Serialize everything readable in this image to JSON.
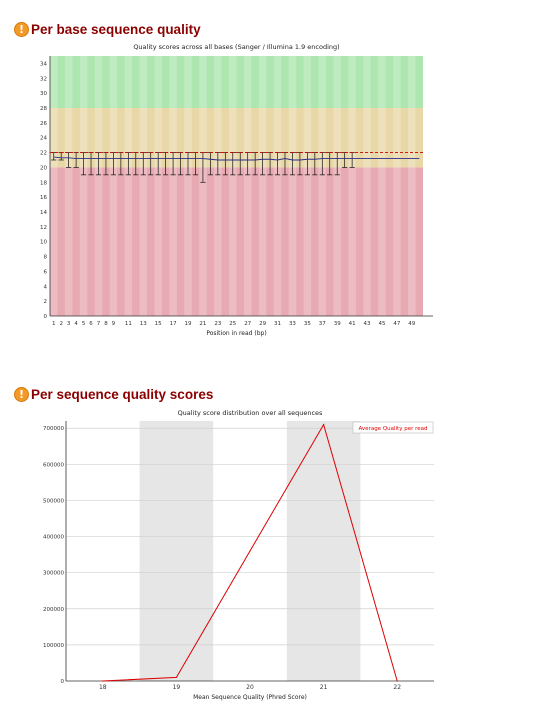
{
  "sections": [
    {
      "title": "Per base sequence quality",
      "status_icon": "warning-icon",
      "status_color": "#f39a26"
    },
    {
      "title": "Per sequence quality scores",
      "status_icon": "warning-icon",
      "status_color": "#f39a26"
    }
  ],
  "colors": {
    "title_red": "#8b0000",
    "band_good": "#aee6b0",
    "band_warn": "#e8d8a8",
    "band_bad": "#e8aab2",
    "mean_line": "#2d2d8a",
    "median_line": "#cc0000",
    "line_red": "#dd0000",
    "shade_grey": "#e6e6e6",
    "grid": "#d0d0d0"
  },
  "chart_data": [
    {
      "type": "box",
      "title": "Quality scores across all bases (Sanger / Illumina 1.9 encoding)",
      "xlabel": "Position in read (bp)",
      "ylabel": "",
      "ylim": [
        0,
        35
      ],
      "yticks": [
        0,
        2,
        4,
        6,
        8,
        10,
        12,
        14,
        16,
        18,
        20,
        22,
        24,
        26,
        28,
        30,
        32,
        34
      ],
      "positions": [
        1,
        2,
        3,
        4,
        5,
        6,
        7,
        8,
        9,
        10,
        11,
        12,
        13,
        14,
        15,
        16,
        17,
        18,
        19,
        20,
        21,
        22,
        23,
        24,
        25,
        26,
        27,
        28,
        29,
        30,
        31,
        32,
        33,
        34,
        35,
        36,
        37,
        38,
        39,
        40,
        41,
        42,
        43,
        44,
        45,
        46,
        47,
        48,
        49,
        50
      ],
      "xtick_labels": [
        "1",
        "2",
        "3",
        "4",
        "5",
        "6",
        "7",
        "8",
        "9",
        "11",
        "13",
        "15",
        "17",
        "19",
        "21",
        "23",
        "25",
        "27",
        "29",
        "31",
        "33",
        "35",
        "37",
        "39",
        "41",
        "43",
        "45",
        "47",
        "49"
      ],
      "bands": [
        {
          "name": "good",
          "from": 28,
          "to": 35
        },
        {
          "name": "warning",
          "from": 20,
          "to": 28
        },
        {
          "name": "poor",
          "from": 0,
          "to": 20
        }
      ],
      "median_line_value": 22,
      "mean_values": [
        21.4,
        21.3,
        21.3,
        21.2,
        21.2,
        21.2,
        21.2,
        21.2,
        21.2,
        21.2,
        21.2,
        21.2,
        21.2,
        21.2,
        21.2,
        21.2,
        21.2,
        21.2,
        21.2,
        21.2,
        21.2,
        21.1,
        21.0,
        21.0,
        21.0,
        21.0,
        21.0,
        21.0,
        21.1,
        21.1,
        21.0,
        21.2,
        21.0,
        21.0,
        21.1,
        21.1,
        21.2,
        21.2,
        21.2,
        21.2,
        21.2,
        21.2,
        21.2,
        21.2,
        21.2,
        21.2,
        21.2,
        21.2,
        21.2,
        21.2
      ],
      "whisker_low": [
        21,
        21,
        20,
        20,
        19,
        19,
        19,
        19,
        19,
        19,
        19,
        19,
        19,
        19,
        19,
        19,
        19,
        19,
        19,
        19,
        18,
        19,
        19,
        19,
        19,
        19,
        19,
        19,
        19,
        19,
        19,
        19,
        19,
        19,
        19,
        19,
        19,
        19,
        19,
        20,
        20,
        null,
        null,
        null,
        null,
        null,
        null,
        null,
        null,
        null
      ],
      "whisker_high": [
        22,
        22,
        22,
        22,
        22,
        22,
        22,
        22,
        22,
        22,
        22,
        22,
        22,
        22,
        22,
        22,
        22,
        22,
        22,
        22,
        22,
        22,
        22,
        22,
        22,
        22,
        22,
        22,
        22,
        22,
        22,
        22,
        22,
        22,
        22,
        22,
        22,
        22,
        22,
        22,
        22,
        null,
        null,
        null,
        null,
        null,
        null,
        null,
        null,
        null
      ]
    },
    {
      "type": "line",
      "title": "Quality score distribution over all sequences",
      "xlabel": "Mean Sequence Quality (Phred Score)",
      "ylabel": "",
      "legend": "Average Quality per read",
      "legend_position": "top-right",
      "x": [
        18,
        19,
        20,
        21,
        22
      ],
      "values": [
        0,
        10000,
        360000,
        710000,
        0
      ],
      "ylim": [
        0,
        720000
      ],
      "yticks": [
        0,
        100000,
        200000,
        300000,
        400000,
        500000,
        600000,
        700000
      ],
      "ytick_labels": [
        "0",
        "100000",
        "200000",
        "300000",
        "400000",
        "500000",
        "600000",
        "700000"
      ],
      "xtick_labels": [
        "18",
        "19",
        "20",
        "21",
        "22"
      ],
      "shaded_columns": [
        19,
        21
      ]
    }
  ]
}
